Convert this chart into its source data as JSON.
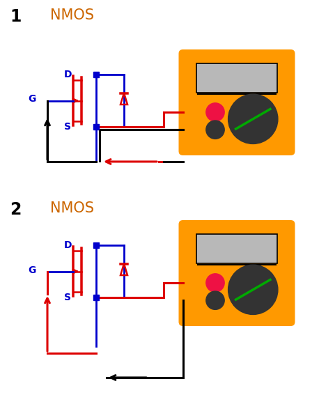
{
  "bg_color": "#ffffff",
  "blue": "#0000cc",
  "red": "#dd0000",
  "black": "#000000",
  "orange": "#ff9900",
  "gray_screen": "#b8b8b8",
  "dark_gray": "#333333",
  "green_dial": "#00aa00",
  "pink_red": "#ee1144",
  "orange_text": "#cc6600",
  "label1": "1",
  "label2": "2",
  "nmos": "NMOS"
}
